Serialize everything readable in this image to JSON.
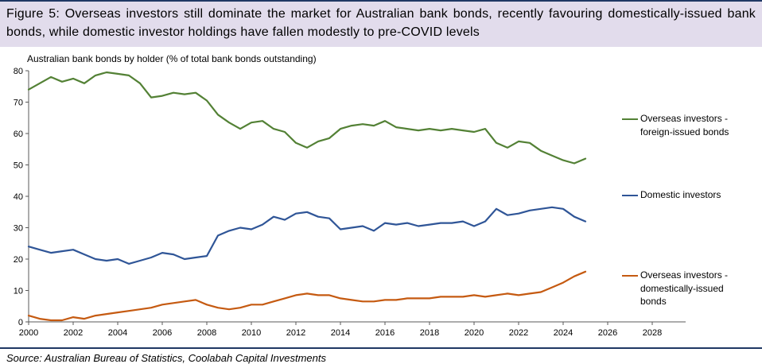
{
  "header": {
    "title": "Figure 5: Overseas investors still dominate the market for Australian bank bonds, recently favouring domestically-issued bank bonds, while domestic investor holdings have fallen modestly to pre-COVID levels"
  },
  "source": "Source: Australian Bureau of Statistics, Coolabah Capital Investments",
  "chart_data": {
    "type": "line",
    "title": "Australian bank bonds by holder (% of total bank bonds outstanding)",
    "xlabel": "",
    "ylabel": "",
    "xlim": [
      2000,
      2029.5
    ],
    "ylim": [
      0,
      80
    ],
    "x_ticks": [
      2000,
      2002,
      2004,
      2006,
      2008,
      2010,
      2012,
      2014,
      2016,
      2018,
      2020,
      2022,
      2024,
      2026,
      2028
    ],
    "y_ticks": [
      0,
      10,
      20,
      30,
      40,
      50,
      60,
      70,
      80
    ],
    "grid": false,
    "legend_position": "right",
    "x_start": 2000,
    "x_step": 0.5,
    "series": [
      {
        "name": "Overseas investors - foreign-issued bonds",
        "legend_label": "Overseas investors -\nforeign-issued bonds",
        "color": "#538135",
        "values": [
          74,
          76,
          78,
          76.5,
          77.5,
          76,
          78.5,
          79.5,
          79,
          78.5,
          76,
          71.5,
          72,
          73,
          72.5,
          73,
          70.5,
          66,
          63.5,
          61.5,
          63.5,
          64,
          61.5,
          60.5,
          57,
          55.5,
          57.5,
          58.5,
          61.5,
          62.5,
          63,
          62.5,
          64,
          62,
          61.5,
          61,
          61.5,
          61,
          61.5,
          61,
          60.5,
          61.5,
          57,
          55.5,
          57.5,
          57,
          54.5,
          53,
          51.5,
          50.5,
          52
        ]
      },
      {
        "name": "Domestic investors",
        "legend_label": "Domestic investors",
        "color": "#2f5597",
        "values": [
          24,
          23,
          22,
          22.5,
          23,
          21.5,
          20,
          19.5,
          20,
          18.5,
          19.5,
          20.5,
          22,
          21.5,
          20,
          20.5,
          21,
          27.5,
          29,
          30,
          29.5,
          31,
          33.5,
          32.5,
          34.5,
          35,
          33.5,
          33,
          29.5,
          30,
          30.5,
          29,
          31.5,
          31,
          31.5,
          30.5,
          31,
          31.5,
          31.5,
          32,
          30.5,
          32,
          36,
          34,
          34.5,
          35.5,
          36,
          36.5,
          36,
          33.5,
          32
        ]
      },
      {
        "name": "Overseas investors - domestically-issued bonds",
        "legend_label": "Overseas investors -\ndomestically-issued\nbonds",
        "color": "#c55a11",
        "values": [
          2,
          1,
          0.5,
          0.5,
          1.5,
          1,
          2,
          2.5,
          3,
          3.5,
          4,
          4.5,
          5.5,
          6,
          6.5,
          7,
          5.5,
          4.5,
          4,
          4.5,
          5.5,
          5.5,
          6.5,
          7.5,
          8.5,
          9,
          8.5,
          8.5,
          7.5,
          7,
          6.5,
          6.5,
          7,
          7,
          7.5,
          7.5,
          7.5,
          8,
          8,
          8,
          8.5,
          8,
          8.5,
          9,
          8.5,
          9,
          9.5,
          11,
          12.5,
          14.5,
          16
        ]
      }
    ]
  }
}
